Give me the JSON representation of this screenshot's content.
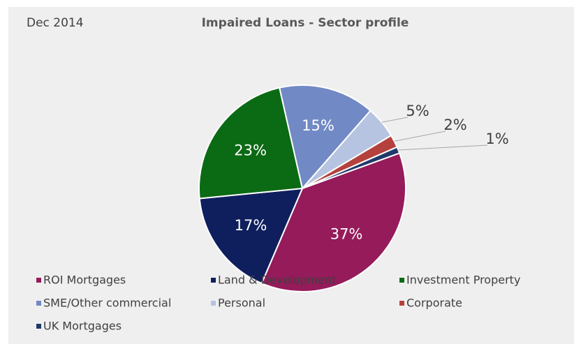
{
  "chart_data": {
    "type": "pie",
    "title": "Impaired Loans - Sector profile",
    "subtitle": "Dec 2014",
    "categories": [
      "ROI Mortgages",
      "Land & Development",
      "Investment Property",
      "SME/Other commercial",
      "Personal",
      "Corporate",
      "UK Mortgages"
    ],
    "values": [
      37,
      17,
      23,
      15,
      5,
      2,
      1
    ],
    "value_labels": [
      "37%",
      "17%",
      "23%",
      "15%",
      "5%",
      "2%",
      "1%"
    ],
    "colors": [
      "#951b5b",
      "#0f1f5e",
      "#0b6a14",
      "#7189c4",
      "#b6c4e1",
      "#b5413e",
      "#1f3a6a"
    ],
    "legend": "bottom"
  }
}
